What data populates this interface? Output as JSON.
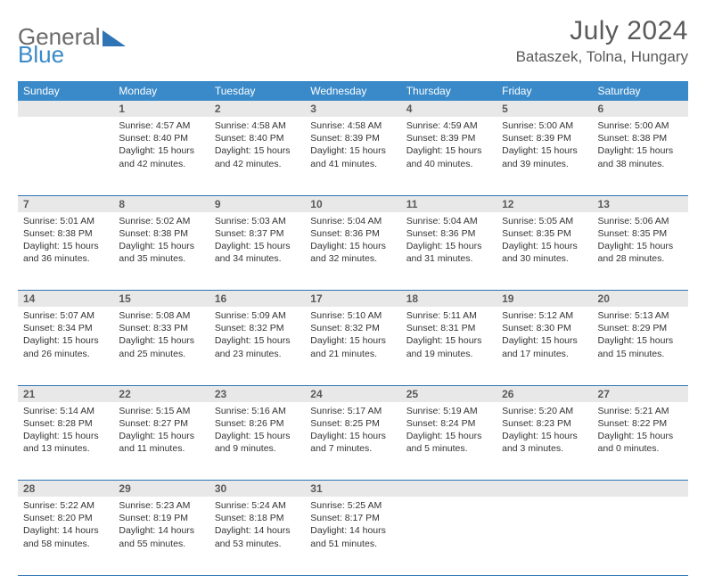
{
  "brand": {
    "part1": "General",
    "part2": "Blue"
  },
  "header": {
    "month_title": "July 2024",
    "location": "Bataszek, Tolna, Hungary"
  },
  "colors": {
    "header_bg": "#3a8ac9",
    "header_text": "#ffffff",
    "divider": "#2f75b5",
    "daynum_bg": "#e8e8e8",
    "text": "#333333",
    "title_text": "#5a5a5a"
  },
  "days_of_week": [
    "Sunday",
    "Monday",
    "Tuesday",
    "Wednesday",
    "Thursday",
    "Friday",
    "Saturday"
  ],
  "weeks": [
    [
      null,
      {
        "n": "1",
        "sunrise": "4:57 AM",
        "sunset": "8:40 PM",
        "daylight": "15 hours and 42 minutes."
      },
      {
        "n": "2",
        "sunrise": "4:58 AM",
        "sunset": "8:40 PM",
        "daylight": "15 hours and 42 minutes."
      },
      {
        "n": "3",
        "sunrise": "4:58 AM",
        "sunset": "8:39 PM",
        "daylight": "15 hours and 41 minutes."
      },
      {
        "n": "4",
        "sunrise": "4:59 AM",
        "sunset": "8:39 PM",
        "daylight": "15 hours and 40 minutes."
      },
      {
        "n": "5",
        "sunrise": "5:00 AM",
        "sunset": "8:39 PM",
        "daylight": "15 hours and 39 minutes."
      },
      {
        "n": "6",
        "sunrise": "5:00 AM",
        "sunset": "8:38 PM",
        "daylight": "15 hours and 38 minutes."
      }
    ],
    [
      {
        "n": "7",
        "sunrise": "5:01 AM",
        "sunset": "8:38 PM",
        "daylight": "15 hours and 36 minutes."
      },
      {
        "n": "8",
        "sunrise": "5:02 AM",
        "sunset": "8:38 PM",
        "daylight": "15 hours and 35 minutes."
      },
      {
        "n": "9",
        "sunrise": "5:03 AM",
        "sunset": "8:37 PM",
        "daylight": "15 hours and 34 minutes."
      },
      {
        "n": "10",
        "sunrise": "5:04 AM",
        "sunset": "8:36 PM",
        "daylight": "15 hours and 32 minutes."
      },
      {
        "n": "11",
        "sunrise": "5:04 AM",
        "sunset": "8:36 PM",
        "daylight": "15 hours and 31 minutes."
      },
      {
        "n": "12",
        "sunrise": "5:05 AM",
        "sunset": "8:35 PM",
        "daylight": "15 hours and 30 minutes."
      },
      {
        "n": "13",
        "sunrise": "5:06 AM",
        "sunset": "8:35 PM",
        "daylight": "15 hours and 28 minutes."
      }
    ],
    [
      {
        "n": "14",
        "sunrise": "5:07 AM",
        "sunset": "8:34 PM",
        "daylight": "15 hours and 26 minutes."
      },
      {
        "n": "15",
        "sunrise": "5:08 AM",
        "sunset": "8:33 PM",
        "daylight": "15 hours and 25 minutes."
      },
      {
        "n": "16",
        "sunrise": "5:09 AM",
        "sunset": "8:32 PM",
        "daylight": "15 hours and 23 minutes."
      },
      {
        "n": "17",
        "sunrise": "5:10 AM",
        "sunset": "8:32 PM",
        "daylight": "15 hours and 21 minutes."
      },
      {
        "n": "18",
        "sunrise": "5:11 AM",
        "sunset": "8:31 PM",
        "daylight": "15 hours and 19 minutes."
      },
      {
        "n": "19",
        "sunrise": "5:12 AM",
        "sunset": "8:30 PM",
        "daylight": "15 hours and 17 minutes."
      },
      {
        "n": "20",
        "sunrise": "5:13 AM",
        "sunset": "8:29 PM",
        "daylight": "15 hours and 15 minutes."
      }
    ],
    [
      {
        "n": "21",
        "sunrise": "5:14 AM",
        "sunset": "8:28 PM",
        "daylight": "15 hours and 13 minutes."
      },
      {
        "n": "22",
        "sunrise": "5:15 AM",
        "sunset": "8:27 PM",
        "daylight": "15 hours and 11 minutes."
      },
      {
        "n": "23",
        "sunrise": "5:16 AM",
        "sunset": "8:26 PM",
        "daylight": "15 hours and 9 minutes."
      },
      {
        "n": "24",
        "sunrise": "5:17 AM",
        "sunset": "8:25 PM",
        "daylight": "15 hours and 7 minutes."
      },
      {
        "n": "25",
        "sunrise": "5:19 AM",
        "sunset": "8:24 PM",
        "daylight": "15 hours and 5 minutes."
      },
      {
        "n": "26",
        "sunrise": "5:20 AM",
        "sunset": "8:23 PM",
        "daylight": "15 hours and 3 minutes."
      },
      {
        "n": "27",
        "sunrise": "5:21 AM",
        "sunset": "8:22 PM",
        "daylight": "15 hours and 0 minutes."
      }
    ],
    [
      {
        "n": "28",
        "sunrise": "5:22 AM",
        "sunset": "8:20 PM",
        "daylight": "14 hours and 58 minutes."
      },
      {
        "n": "29",
        "sunrise": "5:23 AM",
        "sunset": "8:19 PM",
        "daylight": "14 hours and 55 minutes."
      },
      {
        "n": "30",
        "sunrise": "5:24 AM",
        "sunset": "8:18 PM",
        "daylight": "14 hours and 53 minutes."
      },
      {
        "n": "31",
        "sunrise": "5:25 AM",
        "sunset": "8:17 PM",
        "daylight": "14 hours and 51 minutes."
      },
      null,
      null,
      null
    ]
  ],
  "labels": {
    "sunrise": "Sunrise: ",
    "sunset": "Sunset: ",
    "daylight": "Daylight: "
  }
}
